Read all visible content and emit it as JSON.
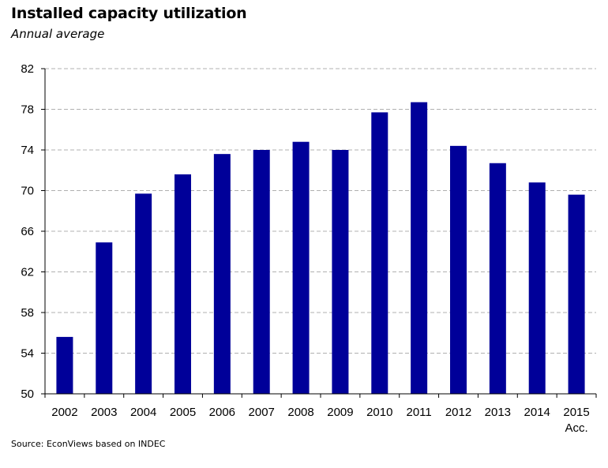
{
  "chart_data": {
    "type": "bar",
    "title": "Installed capacity utilization",
    "subtitle": "Annual average",
    "categories": [
      "2002",
      "2003",
      "2004",
      "2005",
      "2006",
      "2007",
      "2008",
      "2009",
      "2010",
      "2011",
      "2012",
      "2013",
      "2014",
      "2015"
    ],
    "category_sublabels": [
      "",
      "",
      "",
      "",
      "",
      "",
      "",
      "",
      "",
      "",
      "",
      "",
      "",
      "Acc."
    ],
    "values": [
      55.6,
      64.9,
      69.7,
      71.6,
      73.6,
      74.0,
      74.8,
      74.0,
      77.7,
      78.7,
      74.4,
      72.7,
      70.8,
      69.6
    ],
    "ylim": [
      50,
      82
    ],
    "yticks": [
      50,
      54,
      58,
      62,
      66,
      70,
      74,
      78,
      82
    ],
    "grid": true,
    "bar_color": "#000099",
    "grid_color": "#b0b0b0",
    "xlabel": "",
    "ylabel": ""
  },
  "source": "Source: EconViews based on INDEC"
}
